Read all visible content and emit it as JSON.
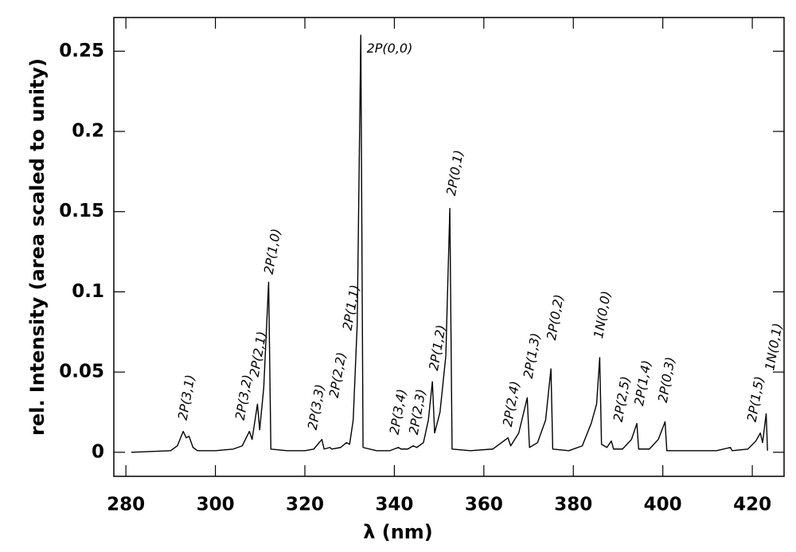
{
  "chart_data": {
    "type": "line",
    "xlabel": "λ (nm)",
    "ylabel": "rel. Intensity (area scaled to unity)",
    "xlim": [
      277.3,
      427.1
    ],
    "xticks": [
      280,
      300,
      320,
      340,
      360,
      380,
      400,
      420
    ],
    "ylim": [
      -0.015,
      0.271
    ],
    "yticks": [
      0,
      0.05,
      0.1,
      0.15,
      0.2,
      0.25
    ],
    "grid": false,
    "x": [
      281.2,
      290,
      291.5,
      292.8,
      293.5,
      294.1,
      295,
      296,
      300,
      304,
      306,
      307.6,
      308.2,
      309.4,
      309.9,
      310.8,
      311.9,
      312.4,
      316,
      320,
      322,
      323.8,
      324.3,
      325.6,
      326,
      328,
      329.3,
      330,
      330.8,
      331.7,
      332.5,
      333,
      336,
      339,
      340.9,
      341.5,
      343,
      344.2,
      345,
      346.5,
      347.6,
      348.5,
      349,
      350.2,
      351.5,
      352.4,
      352.9,
      357,
      362,
      365.4,
      366,
      367.8,
      369.7,
      370.2,
      372,
      373.8,
      375.0,
      375.4,
      379,
      382,
      384,
      385.2,
      385.9,
      386.3,
      387.5,
      388.5,
      389,
      391,
      393,
      394.2,
      394.6,
      397,
      399,
      400.5,
      400.9,
      405,
      412,
      415.1,
      415.5,
      419,
      420.8,
      421.8,
      422.3,
      423.1,
      423.4
    ],
    "series": [
      {
        "color": "#000000",
        "values": [
          0,
          0.001,
          0.004,
          0.013,
          0.009,
          0.01,
          0.003,
          0.001,
          0.001,
          0.002,
          0.004,
          0.013,
          0.008,
          0.03,
          0.014,
          0.04,
          0.106,
          0.002,
          0.001,
          0.001,
          0.002,
          0.008,
          0.002,
          0.003,
          0.002,
          0.003,
          0.006,
          0.005,
          0.02,
          0.08,
          0.26,
          0.003,
          0.001,
          0.001,
          0.003,
          0.002,
          0.002,
          0.004,
          0.003,
          0.006,
          0.02,
          0.044,
          0.012,
          0.025,
          0.06,
          0.152,
          0.002,
          0.001,
          0.002,
          0.009,
          0.004,
          0.012,
          0.034,
          0.003,
          0.006,
          0.02,
          0.052,
          0.002,
          0.001,
          0.004,
          0.018,
          0.03,
          0.059,
          0.005,
          0.003,
          0.007,
          0.002,
          0.002,
          0.008,
          0.018,
          0.002,
          0.002,
          0.008,
          0.019,
          0.001,
          0.001,
          0.001,
          0.003,
          0.001,
          0.002,
          0.007,
          0.012,
          0.006,
          0.024,
          0.001
        ]
      }
    ],
    "annotations": [
      {
        "text": "2P(3,1)",
        "x": 292.8,
        "y": 0.02,
        "angle": -80
      },
      {
        "text": "2P(3,2)",
        "x": 305.6,
        "y": 0.02,
        "angle": -80
      },
      {
        "text": "2P(2,1)",
        "x": 308.8,
        "y": 0.047,
        "angle": -80
      },
      {
        "text": "2P(1,0)",
        "x": 312,
        "y": 0.111,
        "angle": -80
      },
      {
        "text": "2P(3,3)",
        "x": 321.8,
        "y": 0.014,
        "angle": -80
      },
      {
        "text": "2P(2,2)",
        "x": 326.6,
        "y": 0.034,
        "angle": -80
      },
      {
        "text": "2P(1,1)",
        "x": 329.6,
        "y": 0.076,
        "angle": -80
      },
      {
        "text": "2P(0,0)",
        "x": 333.8,
        "y": 0.2515,
        "angle": 0
      },
      {
        "text": "2P(3,4)",
        "x": 340.1,
        "y": 0.011,
        "angle": -80
      },
      {
        "text": "2P(2,3)",
        "x": 344.4,
        "y": 0.011,
        "angle": -80
      },
      {
        "text": "2P(1,2)",
        "x": 348.9,
        "y": 0.051,
        "angle": -80
      },
      {
        "text": "2P(0,1)",
        "x": 352.8,
        "y": 0.16,
        "angle": -80
      },
      {
        "text": "2P(2,4)",
        "x": 365.4,
        "y": 0.016,
        "angle": -80
      },
      {
        "text": "2P(1,3)",
        "x": 370,
        "y": 0.046,
        "angle": -80
      },
      {
        "text": "2P(0,2)",
        "x": 375.2,
        "y": 0.07,
        "angle": -80
      },
      {
        "text": "1N(0,0)",
        "x": 385.7,
        "y": 0.071,
        "angle": -80
      },
      {
        "text": "2P(2,5)",
        "x": 390.1,
        "y": 0.019,
        "angle": -80
      },
      {
        "text": "2P(1,4)",
        "x": 394.8,
        "y": 0.029,
        "angle": -80
      },
      {
        "text": "2P(0,3)",
        "x": 400.1,
        "y": 0.031,
        "angle": -80
      },
      {
        "text": "2P(1,5)",
        "x": 420,
        "y": 0.019,
        "angle": -80
      },
      {
        "text": "1N(0,1)",
        "x": 424,
        "y": 0.051,
        "angle": -80
      }
    ]
  }
}
